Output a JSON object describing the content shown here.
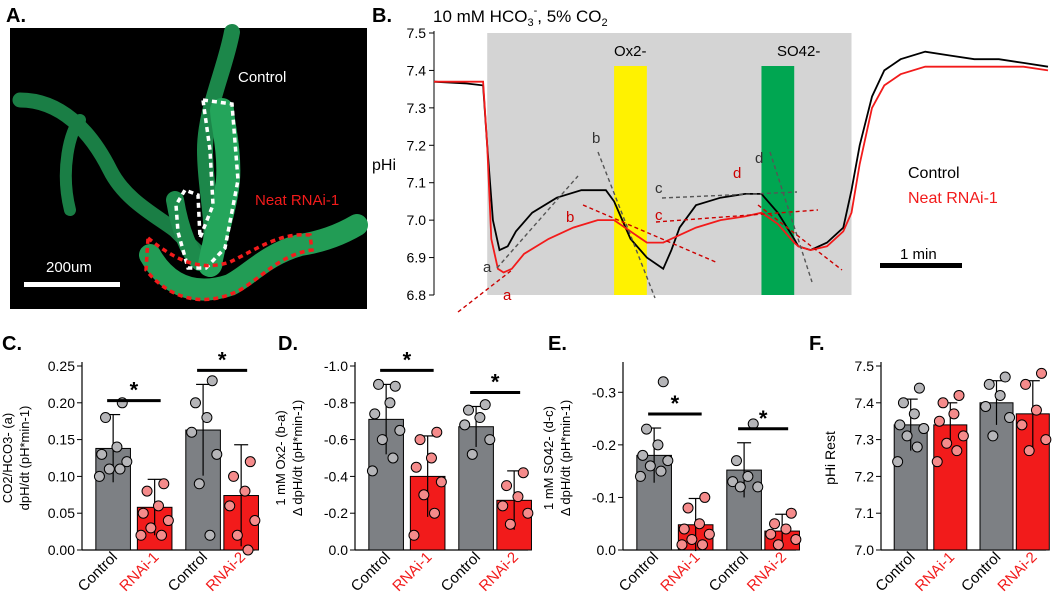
{
  "colors": {
    "control": "#7d8084",
    "rnai": "#f21b1b",
    "ox": "#fff200",
    "so4": "#00a651",
    "shade": "#d4d4d4",
    "micro": "#000000",
    "tubule": "#1e8f4e"
  },
  "panelA": {
    "letter": "A.",
    "control_label": "Control",
    "rnai_label": "Neat RNAi-1",
    "scale_label": "200um"
  },
  "panelB": {
    "letter": "B.",
    "condition": "10 mM HCO3-, 5% CO2",
    "condition_parts": {
      "main": "10 mM HCO",
      "sub3": "3",
      "sup": "-",
      "rest": ", 5% CO",
      "sub2": "2"
    },
    "ox_label": "Ox2-",
    "so4_label": "SO42-",
    "ylabel": "pHi",
    "yticks": [
      "7.5",
      "7.4",
      "7.3",
      "7.2",
      "7.1",
      "7.0",
      "6.9",
      "6.8"
    ],
    "legend": [
      "Control",
      "Neat RNAi-1"
    ],
    "scale_label": "1 min",
    "markers_black": [
      "a",
      "b",
      "c",
      "d"
    ],
    "markers_red": [
      "a",
      "b",
      "c",
      "d"
    ]
  },
  "chart_data": [
    {
      "type": "line",
      "title": "10 mM HCO3-, 5% CO2",
      "xlabel": "time",
      "ylabel": "pHi",
      "ylim": [
        6.8,
        7.5
      ],
      "x_unit": "min",
      "xlim": [
        0,
        7.5
      ],
      "bicarbonate_window_min": [
        0.65,
        5.1
      ],
      "oxalate_window_min": [
        2.2,
        2.6
      ],
      "sulfate_window_min": [
        4.0,
        4.4
      ],
      "series": [
        {
          "name": "Control",
          "color": "#000000",
          "t": [
            0,
            0.4,
            0.6,
            0.65,
            0.72,
            0.8,
            0.9,
            1.0,
            1.2,
            1.5,
            1.8,
            2.1,
            2.2,
            2.4,
            2.6,
            2.8,
            2.9,
            3.0,
            3.2,
            3.5,
            3.8,
            4.0,
            4.2,
            4.4,
            4.45,
            4.6,
            4.8,
            5.0,
            5.1,
            5.2,
            5.35,
            5.5,
            5.7,
            6.0,
            6.3,
            6.6,
            6.9,
            7.2,
            7.5
          ],
          "y": [
            7.37,
            7.365,
            7.36,
            7.2,
            7.0,
            6.92,
            6.93,
            6.97,
            7.02,
            7.06,
            7.08,
            7.08,
            7.05,
            6.95,
            6.9,
            6.87,
            6.92,
            6.98,
            7.04,
            7.06,
            7.07,
            7.07,
            7.02,
            6.95,
            6.93,
            6.92,
            6.94,
            6.98,
            7.08,
            7.2,
            7.33,
            7.4,
            7.43,
            7.45,
            7.44,
            7.43,
            7.43,
            7.42,
            7.41
          ]
        },
        {
          "name": "Neat RNAi-1",
          "color": "#f21b1b",
          "t": [
            0,
            0.4,
            0.6,
            0.65,
            0.7,
            0.78,
            0.85,
            0.95,
            1.1,
            1.4,
            1.7,
            2.0,
            2.2,
            2.4,
            2.6,
            2.8,
            3.0,
            3.2,
            3.5,
            3.8,
            4.0,
            4.2,
            4.4,
            4.45,
            4.6,
            4.8,
            5.0,
            5.1,
            5.2,
            5.35,
            5.5,
            5.7,
            6.0,
            6.3,
            6.6,
            6.9,
            7.2,
            7.5
          ],
          "y": [
            7.37,
            7.37,
            7.37,
            7.2,
            6.95,
            6.87,
            6.86,
            6.87,
            6.91,
            6.95,
            6.98,
            7.0,
            7.0,
            6.97,
            6.94,
            6.94,
            6.96,
            6.98,
            7.0,
            7.01,
            7.02,
            6.99,
            6.94,
            6.93,
            6.92,
            6.93,
            6.97,
            7.02,
            7.15,
            7.3,
            7.36,
            7.39,
            7.41,
            7.41,
            7.41,
            7.41,
            7.41,
            7.4
          ]
        }
      ]
    },
    {
      "type": "bar",
      "panel": "C.",
      "ylabel_line1": "CO2/HCO3- (a)",
      "ylabel_line2": "dpH/dt (pH*min-1)",
      "ylim": [
        0,
        0.25
      ],
      "yticks": [
        "0.25",
        "0.20",
        "0.15",
        "0.10",
        "0.05",
        "0.00"
      ],
      "categories": [
        "Control",
        "RNAi-1",
        "Control",
        "RNAi-2"
      ],
      "values": [
        0.138,
        0.058,
        0.163,
        0.074
      ],
      "errors": [
        0.046,
        0.038,
        0.062,
        0.069
      ],
      "points": [
        [
          0.2,
          0.18,
          0.14,
          0.13,
          0.12,
          0.11,
          0.11,
          0.1
        ],
        [
          0.09,
          0.08,
          0.06,
          0.05,
          0.04,
          0.03,
          0.02,
          0.02
        ],
        [
          0.23,
          0.2,
          0.18,
          0.16,
          0.13,
          0.09,
          0.02
        ],
        [
          0.12,
          0.1,
          0.08,
          0.06,
          0.04,
          0.02,
          0.0
        ]
      ],
      "significance": [
        "*",
        "*"
      ]
    },
    {
      "type": "bar",
      "panel": "D.",
      "ylabel_line1": "1 mM Ox2- (b-a)",
      "ylabel_line2": "Δ dpH/dt (pH*min-1)",
      "ylim": [
        0,
        -1.0
      ],
      "yticks": [
        "-1.0",
        "-0.8",
        "-0.6",
        "-0.4",
        "-0.2",
        "0.0"
      ],
      "categories": [
        "Control",
        "RNAi-1",
        "Control",
        "RNAi-2"
      ],
      "values": [
        -0.71,
        -0.4,
        -0.67,
        -0.27
      ],
      "errors": [
        0.19,
        0.22,
        0.11,
        0.16
      ],
      "points": [
        [
          -0.89,
          -0.9,
          -0.8,
          -0.74,
          -0.65,
          -0.6,
          -0.5,
          -0.43
        ],
        [
          -0.64,
          -0.6,
          -0.5,
          -0.45,
          -0.37,
          -0.3,
          -0.2,
          -0.08
        ],
        [
          -0.79,
          -0.76,
          -0.72,
          -0.68,
          -0.6,
          -0.52
        ],
        [
          -0.42,
          -0.35,
          -0.29,
          -0.24,
          -0.2,
          -0.14
        ]
      ],
      "significance": [
        "*",
        "*"
      ]
    },
    {
      "type": "bar",
      "panel": "E.",
      "ylabel_line1": "1 mM SO42- (d-c)",
      "ylabel_line2": "Δ dpH/dt (pH*min-1)",
      "ylim": [
        0,
        -0.35
      ],
      "yticks": [
        "-0.3",
        "-0.2",
        "-0.1",
        "0.0"
      ],
      "categories": [
        "Control",
        "RNAi-1",
        "Control",
        "RNAi-2"
      ],
      "values": [
        -0.18,
        -0.048,
        -0.152,
        -0.036
      ],
      "errors": [
        0.052,
        0.05,
        0.052,
        0.032
      ],
      "points": [
        [
          -0.32,
          -0.23,
          -0.2,
          -0.18,
          -0.17,
          -0.16,
          -0.15,
          -0.14
        ],
        [
          -0.1,
          -0.08,
          -0.05,
          -0.04,
          -0.03,
          -0.02,
          -0.01,
          -0.01
        ],
        [
          -0.24,
          -0.17,
          -0.14,
          -0.13,
          -0.12,
          -0.12
        ],
        [
          -0.07,
          -0.05,
          -0.04,
          -0.03,
          -0.02,
          -0.01
        ]
      ],
      "significance": [
        "*",
        "*"
      ]
    },
    {
      "type": "bar",
      "panel": "F.",
      "ylabel": "pHi Rest",
      "ylim": [
        7.0,
        7.5
      ],
      "yticks": [
        "7.5",
        "7.4",
        "7.3",
        "7.2",
        "7.1",
        "7.0"
      ],
      "categories": [
        "Control",
        "RNAi-1",
        "Control",
        "RNAi-2"
      ],
      "values": [
        7.34,
        7.34,
        7.4,
        7.37
      ],
      "errors": [
        0.07,
        0.06,
        0.06,
        0.09
      ],
      "points": [
        [
          7.44,
          7.4,
          7.37,
          7.34,
          7.33,
          7.31,
          7.28,
          7.24
        ],
        [
          7.42,
          7.4,
          7.37,
          7.35,
          7.31,
          7.29,
          7.27,
          7.24
        ],
        [
          7.47,
          7.45,
          7.42,
          7.39,
          7.36,
          7.31
        ],
        [
          7.48,
          7.45,
          7.38,
          7.34,
          7.3,
          7.27
        ]
      ],
      "significance": []
    }
  ]
}
